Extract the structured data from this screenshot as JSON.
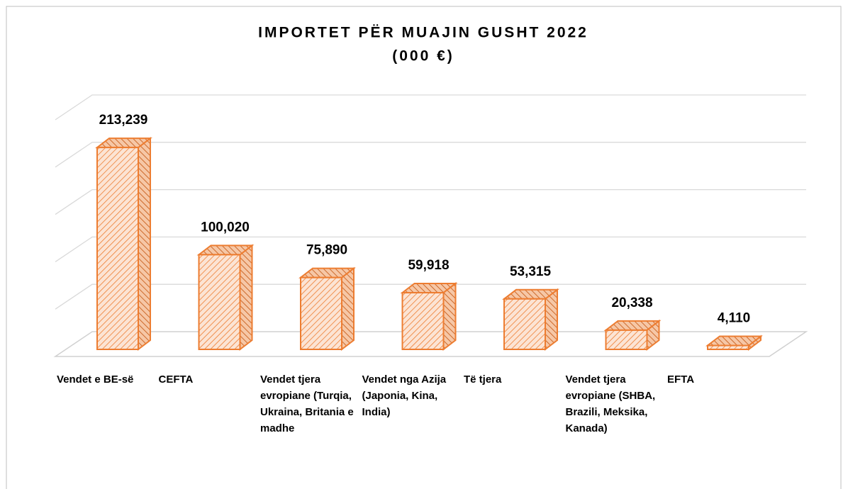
{
  "chart_data": {
    "type": "bar",
    "title": "IMPORTET PËR MUAJIN GUSHT 2022",
    "subtitle": "(000 €)",
    "categories": [
      "Vendet e BE-së",
      "CEFTA",
      "Vendet tjera evropiane (Turqia, Ukraina, Britania e madhe",
      "Vendet nga Azija (Japonia, Kina, India)",
      "Të tjera",
      "Vendet tjera evropiane (SHBA, Brazili, Meksika, Kanada)",
      "EFTA"
    ],
    "values": [
      213239,
      100020,
      75890,
      59918,
      53315,
      20338,
      4110
    ],
    "value_labels": [
      "213,239",
      "100,020",
      "75,890",
      "59,918",
      "53,315",
      "20,338",
      "4,110"
    ],
    "color": "#ed7d31",
    "ylim": [
      0,
      250000
    ],
    "yticks": [
      0,
      50000,
      100000,
      150000,
      200000,
      250000
    ],
    "grid": true
  }
}
